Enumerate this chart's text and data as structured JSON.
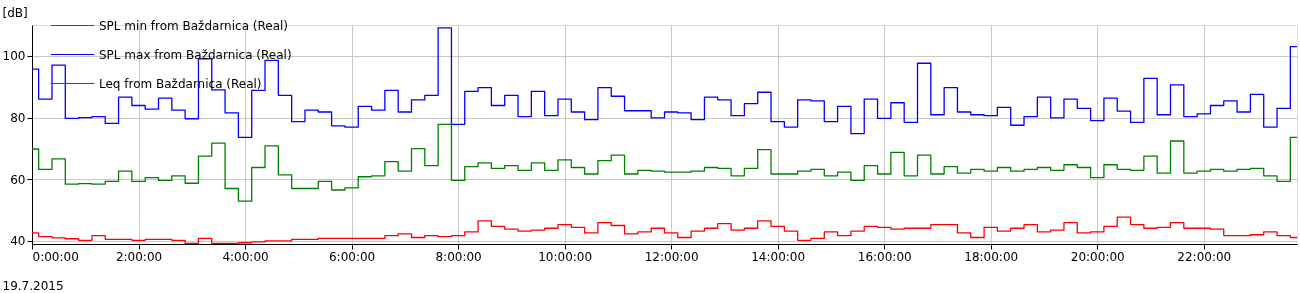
{
  "chart_data": {
    "type": "step",
    "ylabel": "[dB]",
    "annotations": [
      "19.7.2015"
    ],
    "x": [
      0,
      0.25,
      0.5,
      0.75,
      1,
      1.25,
      1.5,
      1.75,
      2,
      2.25,
      2.5,
      2.75,
      3,
      3.25,
      3.5,
      3.75,
      4,
      4.25,
      4.5,
      4.75,
      5,
      5.25,
      5.5,
      5.75,
      6,
      6.25,
      6.5,
      6.75,
      7,
      7.25,
      7.5,
      7.75,
      8,
      8.25,
      8.5,
      8.75,
      9,
      9.25,
      9.5,
      9.75,
      10,
      10.25,
      10.5,
      10.75,
      11,
      11.25,
      11.5,
      11.75,
      12,
      12.25,
      12.5,
      12.75,
      13,
      13.25,
      13.5,
      13.75,
      14,
      14.25,
      14.5,
      14.75,
      15,
      15.25,
      15.5,
      15.75,
      16,
      16.25,
      16.5,
      16.75,
      17,
      17.25,
      17.5,
      17.75,
      18,
      18.25,
      18.5,
      18.75,
      19,
      19.25,
      19.5,
      19.75,
      20,
      20.25,
      20.5,
      20.75,
      21,
      21.25,
      21.5,
      21.75,
      22,
      22.25,
      22.5,
      22.75,
      23,
      23.25,
      23.5,
      23.75
    ],
    "series": [
      {
        "name": "SPL min from Baždarnica (Real)",
        "color": "#ff0000",
        "values": [
          42.6,
          41.4,
          41.0,
          40.7,
          40.2,
          41.7,
          40.5,
          40.5,
          40.2,
          40.5,
          40.5,
          40.2,
          39.2,
          40.8,
          39.2,
          39.2,
          39.4,
          39.7,
          40.0,
          40.0,
          40.5,
          40.5,
          40.8,
          40.8,
          40.8,
          40.8,
          40.8,
          41.7,
          42.3,
          41.1,
          41.7,
          41.4,
          41.7,
          42.9,
          46.5,
          44.7,
          43.8,
          43.2,
          43.5,
          44.1,
          45.3,
          44.4,
          42.6,
          45.9,
          45.0,
          42.3,
          42.9,
          44.1,
          42.6,
          41.1,
          43.2,
          44.1,
          45.6,
          43.5,
          44.1,
          46.5,
          44.7,
          43.2,
          40.2,
          40.8,
          42.9,
          41.7,
          43.2,
          44.7,
          44.4,
          43.8,
          44.1,
          44.1,
          45.3,
          45.3,
          42.6,
          41.1,
          44.4,
          43.2,
          44.1,
          45.3,
          42.9,
          43.5,
          45.9,
          42.6,
          42.9,
          44.7,
          47.7,
          45.3,
          44.1,
          44.4,
          45.9,
          44.1,
          44.1,
          43.8,
          41.7,
          41.7,
          42.0,
          42.9,
          41.7,
          41.1
        ]
      },
      {
        "name": "SPL max from Baždarnica (Real)",
        "color": "#0000ff",
        "values": [
          95.7,
          86.0,
          97.0,
          79.7,
          80.0,
          80.3,
          78.1,
          86.6,
          83.9,
          82.7,
          86.3,
          82.4,
          79.6,
          99.0,
          89.0,
          81.5,
          73.6,
          88.8,
          98.5,
          87.2,
          78.7,
          82.4,
          81.8,
          77.3,
          76.9,
          83.6,
          82.4,
          88.8,
          81.8,
          85.7,
          87.2,
          109.1,
          77.8,
          88.5,
          89.7,
          83.9,
          87.2,
          80.3,
          88.5,
          80.6,
          86.0,
          81.8,
          79.3,
          89.7,
          86.9,
          82.2,
          82.2,
          79.9,
          81.8,
          81.5,
          79.3,
          86.6,
          85.7,
          80.6,
          84.5,
          88.2,
          78.7,
          76.9,
          85.7,
          85.4,
          78.7,
          83.6,
          74.8,
          86.0,
          79.7,
          84.8,
          78.4,
          97.6,
          80.9,
          89.7,
          81.8,
          80.9,
          80.6,
          83.3,
          77.5,
          80.3,
          86.6,
          79.9,
          86.0,
          83.0,
          79.0,
          86.3,
          82.1,
          78.4,
          92.7,
          80.9,
          90.6,
          80.3,
          81.2,
          83.9,
          85.4,
          81.8,
          87.5,
          76.9,
          83.0,
          103.0
        ]
      },
      {
        "name": "Leq from Baždarnica (Real)",
        "color": "#008000",
        "values": [
          69.8,
          63.2,
          66.6,
          58.4,
          58.6,
          58.4,
          59.3,
          62.6,
          59.3,
          60.5,
          59.6,
          61.1,
          58.7,
          67.5,
          71.7,
          57.0,
          52.9,
          63.8,
          70.8,
          61.4,
          57.0,
          57.0,
          59.3,
          56.5,
          57.2,
          60.8,
          61.1,
          65.7,
          62.6,
          69.9,
          64.4,
          77.8,
          59.6,
          64.1,
          65.3,
          63.5,
          64.4,
          62.9,
          65.3,
          62.9,
          66.3,
          63.8,
          61.7,
          66.0,
          67.8,
          61.7,
          62.9,
          62.6,
          62.3,
          62.3,
          62.6,
          63.8,
          63.5,
          61.1,
          63.5,
          69.6,
          61.7,
          61.7,
          62.6,
          63.2,
          61.1,
          62.3,
          59.6,
          64.4,
          61.7,
          68.7,
          61.1,
          67.8,
          61.7,
          64.1,
          62.0,
          63.2,
          62.6,
          63.8,
          62.6,
          63.2,
          63.8,
          62.9,
          64.7,
          63.8,
          60.5,
          64.7,
          63.2,
          62.9,
          67.5,
          62.0,
          72.4,
          62.0,
          62.6,
          63.2,
          62.6,
          63.2,
          63.5,
          61.1,
          59.3,
          73.6
        ]
      }
    ],
    "xlim": [
      0,
      23.75
    ],
    "xticks": [
      {
        "value": 0,
        "label": "0:00:00"
      },
      {
        "value": 2,
        "label": "2:00:00"
      },
      {
        "value": 4,
        "label": "4:00:00"
      },
      {
        "value": 6,
        "label": "6:00:00"
      },
      {
        "value": 8,
        "label": "8:00:00"
      },
      {
        "value": 10,
        "label": "10:00:00"
      },
      {
        "value": 12,
        "label": "12:00:00"
      },
      {
        "value": 14,
        "label": "14:00:00"
      },
      {
        "value": 16,
        "label": "16:00:00"
      },
      {
        "value": 18,
        "label": "18:00:00"
      },
      {
        "value": 20,
        "label": "20:00:00"
      },
      {
        "value": 22,
        "label": "22:00:00"
      }
    ],
    "ylim": [
      39,
      110
    ],
    "yticks": [
      40,
      60,
      80,
      100
    ],
    "grid": true,
    "legend": "top left"
  }
}
